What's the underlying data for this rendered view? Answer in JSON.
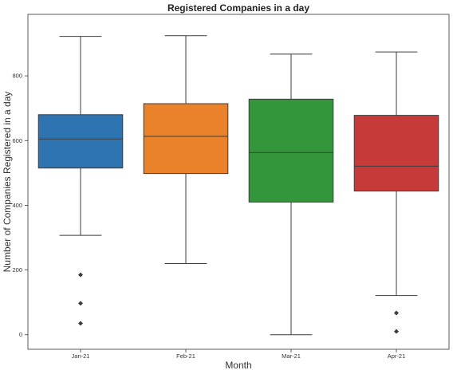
{
  "chart_data": {
    "type": "box",
    "title": "Registered Companies in a day",
    "xlabel": "Month",
    "ylabel": "Number of Companies Registered in a day",
    "ylim": [
      -45,
      990
    ],
    "yticks": [
      0,
      200,
      400,
      600,
      800
    ],
    "grid": false,
    "categories": [
      "Jan-21",
      "Feb-21",
      "Mar-21",
      "Apr-21"
    ],
    "boxes": [
      {
        "category": "Jan-21",
        "whisker_low": 307,
        "q1": 515,
        "median": 605,
        "q3": 680,
        "whisker_high": 922,
        "outliers": [
          185,
          97,
          35
        ],
        "color": "#2e74b0"
      },
      {
        "category": "Feb-21",
        "whisker_low": 220,
        "q1": 498,
        "median": 613,
        "q3": 714,
        "whisker_high": 924,
        "outliers": [],
        "color": "#e9822b"
      },
      {
        "category": "Mar-21",
        "whisker_low": 0,
        "q1": 410,
        "median": 563,
        "q3": 728,
        "whisker_high": 867,
        "outliers": [],
        "color": "#34963a"
      },
      {
        "category": "Apr-21",
        "whisker_low": 121,
        "q1": 444,
        "median": 521,
        "q3": 678,
        "whisker_high": 874,
        "outliers": [
          67,
          10
        ],
        "color": "#c73a3a"
      }
    ]
  }
}
